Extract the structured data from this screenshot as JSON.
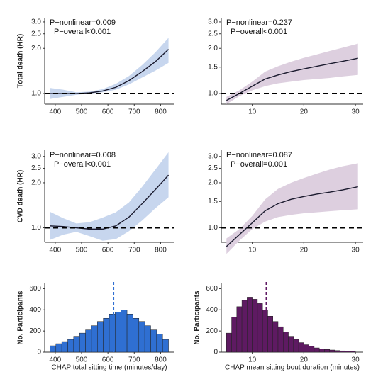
{
  "chart_data": [
    {
      "type": "line",
      "ylabel": "Total death (HR)",
      "annotations": [
        "P−nonlinear=0.009",
        "P−overall<0.001"
      ],
      "x": [
        380,
        430,
        480,
        530,
        580,
        630,
        680,
        730,
        780,
        830
      ],
      "series": [
        {
          "color": "#1a1a2e",
          "band_color": "#c7d6ee",
          "values": [
            1.0,
            1.0,
            1.0,
            1.01,
            1.04,
            1.1,
            1.22,
            1.4,
            1.63,
            1.97
          ],
          "lower": [
            0.92,
            0.95,
            0.98,
            1.0,
            1.02,
            1.06,
            1.15,
            1.28,
            1.42,
            1.6
          ],
          "upper": [
            1.09,
            1.06,
            1.02,
            1.03,
            1.07,
            1.16,
            1.31,
            1.55,
            1.88,
            2.35
          ]
        }
      ],
      "xlim": [
        360,
        850
      ],
      "ylim": [
        0.85,
        3.2
      ],
      "ylog": true,
      "hline": 1,
      "xticks": [
        400,
        500,
        600,
        700,
        800
      ],
      "yticks": [
        {
          "value": 1,
          "label": "1.0"
        },
        {
          "value": 2,
          "label": "2.0"
        },
        {
          "value": 2.5,
          "label": "2.5"
        },
        {
          "value": 3,
          "label": "3.0"
        }
      ]
    },
    {
      "type": "line",
      "annotations": [
        "P−nonlinear=0.237",
        "P−overall<0.001"
      ],
      "x": [
        5,
        7.5,
        10,
        12.5,
        15,
        17.5,
        20,
        22.5,
        25,
        27.5,
        30.5
      ],
      "series": [
        {
          "color": "#1a1a2e",
          "band_color": "#ddcfdf",
          "values": [
            0.9,
            1.0,
            1.12,
            1.25,
            1.33,
            1.4,
            1.46,
            1.52,
            1.58,
            1.64,
            1.72
          ],
          "lower": [
            0.85,
            0.96,
            1.05,
            1.12,
            1.17,
            1.2,
            1.23,
            1.25,
            1.27,
            1.3,
            1.33
          ],
          "upper": [
            0.95,
            1.05,
            1.2,
            1.4,
            1.52,
            1.63,
            1.73,
            1.82,
            1.92,
            2.02,
            2.15
          ]
        }
      ],
      "xlim": [
        4,
        31.5
      ],
      "ylim": [
        0.85,
        3.2
      ],
      "ylog": true,
      "hline": 1,
      "xticks": [
        10,
        20,
        30
      ],
      "yticks": [
        {
          "value": 1,
          "label": "1.0"
        },
        {
          "value": 1.5,
          "label": "1.5"
        },
        {
          "value": 2,
          "label": "2.0"
        },
        {
          "value": 2.5,
          "label": "2.5"
        },
        {
          "value": 3,
          "label": "3.0"
        }
      ]
    },
    {
      "type": "line",
      "ylabel": "CVD death (HR)",
      "annotations": [
        "P−nonlinear=0.008",
        "P−overall<0.001"
      ],
      "x": [
        380,
        430,
        480,
        530,
        580,
        630,
        680,
        730,
        780,
        830
      ],
      "series": [
        {
          "color": "#1a1a2e",
          "band_color": "#c7d6ee",
          "values": [
            1.03,
            1.02,
            1.0,
            0.98,
            0.98,
            1.03,
            1.18,
            1.45,
            1.8,
            2.25
          ],
          "lower": [
            0.83,
            0.9,
            0.94,
            0.88,
            0.82,
            0.84,
            0.95,
            1.12,
            1.35,
            1.6
          ],
          "upper": [
            1.28,
            1.16,
            1.07,
            1.09,
            1.17,
            1.27,
            1.48,
            1.88,
            2.45,
            3.2
          ]
        }
      ],
      "xlim": [
        360,
        850
      ],
      "ylim": [
        0.8,
        3.3
      ],
      "ylog": true,
      "hline": 1,
      "xticks": [
        400,
        500,
        600,
        700,
        800
      ],
      "yticks": [
        {
          "value": 1,
          "label": "1.0"
        },
        {
          "value": 2,
          "label": "2.0"
        },
        {
          "value": 2.5,
          "label": "2.5"
        },
        {
          "value": 3,
          "label": "3.0"
        }
      ]
    },
    {
      "type": "line",
      "annotations": [
        "P−nonlinear=0.087",
        "P−overall=0.001"
      ],
      "x": [
        5,
        7.5,
        10,
        12.5,
        15,
        17.5,
        20,
        22.5,
        25,
        27.5,
        30.5
      ],
      "series": [
        {
          "color": "#1a1a2e",
          "band_color": "#ddcfdf",
          "values": [
            0.75,
            0.9,
            1.08,
            1.3,
            1.45,
            1.55,
            1.62,
            1.68,
            1.73,
            1.79,
            1.88
          ],
          "lower": [
            0.67,
            0.82,
            0.98,
            1.1,
            1.18,
            1.22,
            1.25,
            1.27,
            1.29,
            1.31,
            1.33
          ],
          "upper": [
            0.85,
            0.98,
            1.2,
            1.55,
            1.82,
            2.0,
            2.15,
            2.3,
            2.45,
            2.58,
            2.7
          ]
        }
      ],
      "xlim": [
        4,
        31.5
      ],
      "ylim": [
        0.8,
        3.3
      ],
      "ylog": true,
      "hline": 1,
      "xticks": [
        10,
        20,
        30
      ],
      "yticks": [
        {
          "value": 1,
          "label": "1.0"
        },
        {
          "value": 1.5,
          "label": "1.5"
        },
        {
          "value": 2,
          "label": "2.0"
        },
        {
          "value": 2.5,
          "label": "2.5"
        },
        {
          "value": 3,
          "label": "3.0"
        }
      ]
    },
    {
      "type": "histogram",
      "xlabel": "CHAP total sitting time (minutes/day)",
      "ylabel": "No. Participants",
      "color": "#2f6fd2",
      "bins": [
        380,
        402.5,
        425,
        447.5,
        470,
        492.5,
        515,
        537.5,
        560,
        582.5,
        605,
        627.5,
        650,
        672.5,
        695,
        717.5,
        740,
        762.5,
        785,
        807.5,
        830
      ],
      "counts": [
        60,
        80,
        100,
        120,
        150,
        180,
        210,
        250,
        290,
        320,
        360,
        380,
        400,
        360,
        320,
        290,
        250,
        210,
        170,
        120
      ],
      "vline": 622,
      "xlim": [
        360,
        850
      ],
      "ylim": [
        0,
        650
      ],
      "xticks": [
        400,
        500,
        600,
        700,
        800
      ],
      "yticks": [
        0,
        200,
        400,
        600
      ]
    },
    {
      "type": "histogram",
      "xlabel": "CHAP mean sitting bout duration (minutes)",
      "ylabel": "No. Participants",
      "color": "#5e1a62",
      "bins": [
        5,
        6,
        7,
        8,
        9,
        10,
        11,
        12,
        13,
        14,
        15,
        16,
        17,
        18,
        19,
        20,
        21,
        22,
        23,
        24,
        25,
        26,
        27,
        28,
        29,
        30
      ],
      "counts": [
        180,
        330,
        430,
        490,
        520,
        500,
        460,
        400,
        340,
        290,
        240,
        190,
        150,
        120,
        90,
        70,
        55,
        40,
        30,
        25,
        20,
        15,
        12,
        10,
        8
      ],
      "vline": 12.7,
      "xlim": [
        4,
        31.5
      ],
      "ylim": [
        0,
        650
      ],
      "xticks": [
        10,
        20,
        30
      ],
      "yticks": [
        0,
        200,
        400,
        600
      ]
    }
  ]
}
